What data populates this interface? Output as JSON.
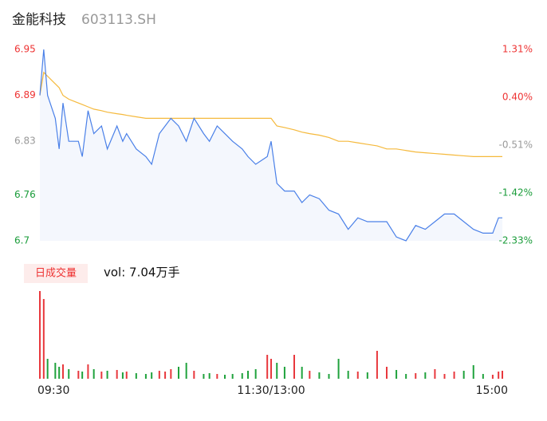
{
  "header": {
    "name": "金能科技",
    "code": "603113.SH"
  },
  "chart_data": [
    {
      "type": "line",
      "x": [
        0,
        2,
        4,
        8,
        10,
        12,
        15,
        20,
        22,
        25,
        28,
        32,
        35,
        40,
        43,
        45,
        50,
        55,
        58,
        62,
        65,
        68,
        72,
        76,
        80,
        85,
        88,
        92,
        96,
        100,
        105,
        108,
        112,
        118,
        120,
        123,
        127,
        132,
        136,
        140,
        145,
        150,
        155,
        160,
        165,
        170,
        175,
        180,
        185,
        190,
        195,
        200,
        205,
        210,
        215,
        220,
        225,
        230,
        235,
        238,
        240
      ],
      "series": [
        {
          "name": "price",
          "color": "#4a80e8",
          "values": [
            6.89,
            6.95,
            6.89,
            6.86,
            6.82,
            6.88,
            6.83,
            6.83,
            6.81,
            6.87,
            6.84,
            6.85,
            6.82,
            6.85,
            6.83,
            6.84,
            6.82,
            6.81,
            6.8,
            6.84,
            6.85,
            6.86,
            6.85,
            6.83,
            6.86,
            6.84,
            6.83,
            6.85,
            6.84,
            6.83,
            6.82,
            6.81,
            6.8,
            6.81,
            6.83,
            6.775,
            6.765,
            6.765,
            6.75,
            6.76,
            6.755,
            6.74,
            6.735,
            6.715,
            6.73,
            6.725,
            6.725,
            6.725,
            6.705,
            6.7,
            6.72,
            6.715,
            6.725,
            6.735,
            6.735,
            6.725,
            6.715,
            6.71,
            6.71,
            6.73,
            6.73
          ]
        },
        {
          "name": "average",
          "color": "#f5b93c",
          "values": [
            6.89,
            6.92,
            6.915,
            6.905,
            6.9,
            6.89,
            6.885,
            6.88,
            6.878,
            6.875,
            6.872,
            6.87,
            6.868,
            6.866,
            6.865,
            6.864,
            6.862,
            6.86,
            6.86,
            6.86,
            6.86,
            6.86,
            6.86,
            6.86,
            6.86,
            6.86,
            6.86,
            6.86,
            6.86,
            6.86,
            6.86,
            6.86,
            6.86,
            6.86,
            6.86,
            6.85,
            6.848,
            6.845,
            6.842,
            6.84,
            6.838,
            6.835,
            6.83,
            6.83,
            6.828,
            6.826,
            6.824,
            6.82,
            6.82,
            6.818,
            6.816,
            6.815,
            6.814,
            6.813,
            6.812,
            6.811,
            6.81,
            6.81,
            6.81,
            6.81,
            6.81
          ]
        }
      ],
      "xlim": [
        0,
        240
      ],
      "ylim": [
        6.7,
        6.95
      ],
      "yticks": [
        6.95,
        6.89,
        6.83,
        6.76,
        6.7
      ],
      "y2lim": [
        -2.33,
        1.31
      ],
      "y2ticks": [
        {
          "value": 1.31,
          "label": "1.31%"
        },
        {
          "value": 0.4,
          "label": "0.40%"
        },
        {
          "value": -0.51,
          "label": "-0.51%"
        },
        {
          "value": -1.42,
          "label": "-1.42%"
        },
        {
          "value": -2.33,
          "label": "-2.33%"
        }
      ]
    },
    {
      "type": "bar",
      "badge": "日成交量",
      "summary": "vol: 7.04万手",
      "x": [
        0,
        2,
        4,
        8,
        10,
        12,
        15,
        20,
        22,
        25,
        28,
        32,
        35,
        40,
        43,
        45,
        50,
        55,
        58,
        62,
        65,
        68,
        72,
        76,
        80,
        85,
        88,
        92,
        96,
        100,
        105,
        108,
        112,
        118,
        120,
        123,
        127,
        132,
        136,
        140,
        145,
        150,
        155,
        160,
        165,
        170,
        175,
        180,
        185,
        190,
        195,
        200,
        205,
        210,
        215,
        220,
        225,
        230,
        235,
        238,
        240
      ],
      "values": [
        1100,
        1000,
        250,
        200,
        150,
        180,
        120,
        100,
        90,
        180,
        120,
        90,
        100,
        110,
        80,
        90,
        70,
        60,
        80,
        100,
        90,
        120,
        150,
        200,
        100,
        60,
        70,
        60,
        50,
        60,
        70,
        100,
        120,
        300,
        250,
        200,
        150,
        300,
        150,
        100,
        80,
        60,
        250,
        100,
        90,
        80,
        350,
        150,
        110,
        60,
        70,
        80,
        120,
        60,
        90,
        100,
        170,
        60,
        50,
        90,
        100
      ],
      "xlim": [
        0,
        240
      ],
      "xticks": [
        {
          "value": 0,
          "label": "09:30"
        },
        {
          "value": 120,
          "label": "11:30/13:00"
        },
        {
          "value": 240,
          "label": "15:00"
        }
      ]
    }
  ]
}
